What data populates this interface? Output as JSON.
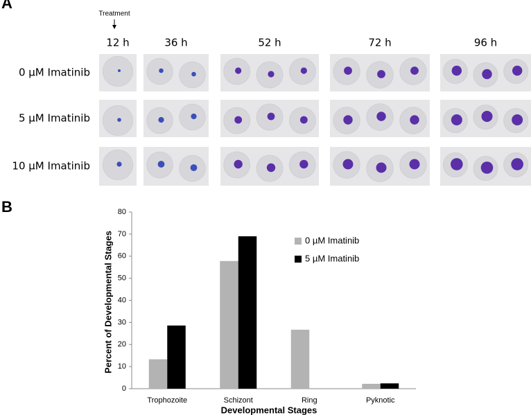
{
  "panel_a": {
    "label": "A",
    "treatment": "Treatment",
    "columns": [
      "12 h",
      "36 h",
      "52 h",
      "72 h",
      "96 h"
    ],
    "rows": [
      "0 µM Imatinib",
      "5 µM Imatinib",
      "10 µM Imatinib"
    ]
  },
  "chart_data": {
    "type": "bar",
    "panel_label": "B",
    "y_label": "Percent of Developmental Stages",
    "x_label": "Developmental Stages",
    "categories": [
      "Trophozoite",
      "Schizont",
      "Ring",
      "Pyknotic"
    ],
    "series": [
      {
        "name": "0 µM Imatinib",
        "color": "#b3b3b3",
        "values": [
          13.3,
          57.8,
          26.7,
          2.2
        ]
      },
      {
        "name": "5 µM Imatinib",
        "color": "#000000",
        "values": [
          28.6,
          69.0,
          0,
          2.4
        ]
      }
    ],
    "ylim": [
      0,
      80
    ],
    "yticks": [
      0,
      10,
      20,
      30,
      40,
      50,
      60,
      70,
      80
    ],
    "grid": false
  }
}
